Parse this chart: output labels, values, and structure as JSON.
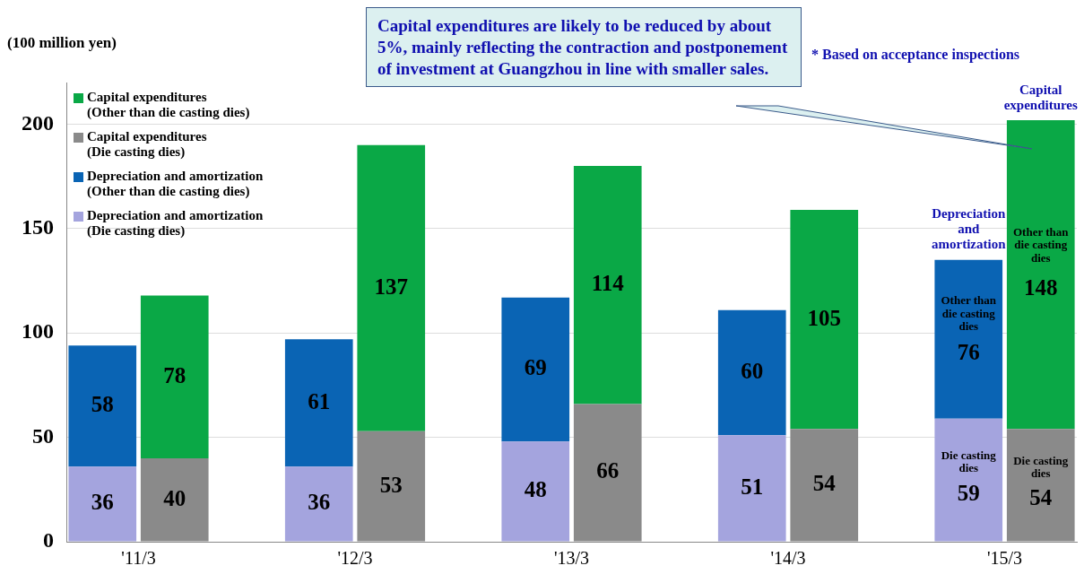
{
  "chart_data": {
    "type": "bar",
    "stacked": true,
    "ylabel": "(100 million yen)",
    "categories": [
      "'11/3",
      null,
      null,
      "'12/3",
      null,
      null,
      "'13/3",
      null,
      null,
      "'14/3",
      null,
      null,
      "'15/3",
      null
    ],
    "series": [
      {
        "name": "Depreciation and amortization (Die casting dies)",
        "color": "#a4a4de",
        "values": [
          36,
          null,
          null,
          36,
          null,
          null,
          48,
          null,
          null,
          51,
          null,
          null,
          59,
          null
        ]
      },
      {
        "name": "Depreciation and amortization (Other than die casting dies)",
        "color": "#0a64b4",
        "values": [
          58,
          null,
          null,
          61,
          null,
          null,
          69,
          null,
          null,
          60,
          null,
          null,
          76,
          null
        ]
      },
      {
        "name": "Capital expenditures (Die casting dies)",
        "color": "#8a8a8a",
        "values": [
          null,
          40,
          null,
          null,
          53,
          null,
          null,
          66,
          null,
          null,
          54,
          null,
          null,
          54
        ]
      },
      {
        "name": "Capital expenditures (Other than die casting dies)",
        "color": "#0aa846",
        "values": [
          null,
          78,
          null,
          null,
          137,
          null,
          null,
          114,
          null,
          null,
          105,
          null,
          null,
          148
        ]
      }
    ],
    "ylim": [
      0,
      220
    ],
    "yticks": [
      0,
      50,
      100,
      150,
      200
    ],
    "grid": "y",
    "legend": "top left",
    "data_labels": true,
    "annotations": [
      "Capital expenditures are likely to be reduced by about 5%, mainly reflecting the contraction and postponement of investment at Guangzhou in line with smaller sales.",
      "* Based on acceptance inspections",
      "Depreciation and amortization",
      "Capital expenditures",
      "Other than die casting dies",
      "Other than die casting dies",
      "Die casting dies",
      "Die casting dies"
    ]
  }
}
